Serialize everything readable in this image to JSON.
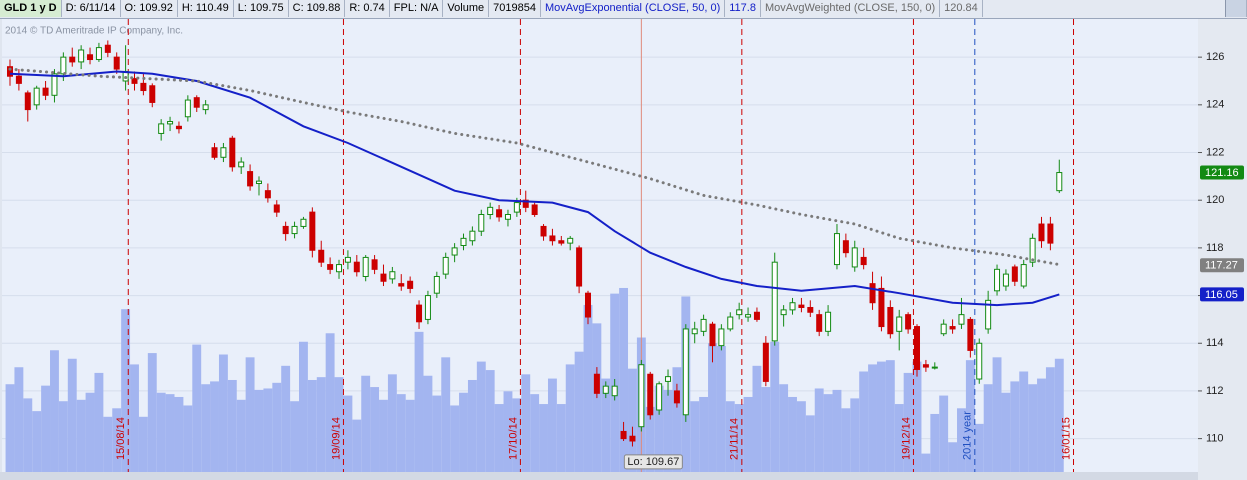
{
  "header": {
    "symbol": "GLD 1 y D",
    "fields": [
      "D: 6/11/14",
      "O: 109.92",
      "H: 110.49",
      "L: 109.75",
      "C: 109.88",
      "R: 0.74",
      "FPL: N/A"
    ],
    "volume_label": "Volume",
    "volume_value": 7019854
  },
  "chart_data": {
    "type": "candlestick",
    "copyright": "2014 © TD Ameritrade IP Company, Inc.",
    "up_color": "#138a13",
    "down_color": "#cc0000",
    "volume_color": "#a3b5f0",
    "xlim": [
      -0.9,
      133.6
    ],
    "ylim": [
      108.6,
      127.6
    ],
    "vlim": [
      0,
      32
    ],
    "yticks": [
      110,
      112,
      114,
      116,
      118,
      120,
      122,
      124,
      126
    ],
    "candles": [
      [
        125.6,
        125.9,
        124.8,
        125.2
      ],
      [
        125.2,
        125.5,
        124.6,
        124.9
      ],
      [
        124.5,
        124.6,
        123.3,
        123.8
      ],
      [
        124.0,
        124.8,
        123.8,
        124.7
      ],
      [
        124.7,
        125.0,
        124.2,
        124.4
      ],
      [
        124.4,
        125.5,
        124.1,
        125.3
      ],
      [
        125.3,
        126.2,
        125.0,
        126.0
      ],
      [
        126.0,
        126.4,
        125.6,
        125.8
      ],
      [
        125.8,
        126.5,
        125.5,
        126.3
      ],
      [
        126.1,
        126.4,
        125.7,
        125.9
      ],
      [
        125.9,
        126.6,
        125.8,
        126.4
      ],
      [
        126.5,
        126.7,
        126.0,
        126.2
      ],
      [
        126.0,
        126.2,
        125.3,
        125.5
      ],
      [
        125.0,
        126.5,
        124.6,
        125.4
      ],
      [
        125.1,
        125.4,
        124.6,
        124.9
      ],
      [
        124.9,
        125.3,
        124.4,
        124.6
      ],
      [
        124.8,
        124.9,
        123.9,
        124.1
      ],
      [
        122.8,
        123.4,
        122.5,
        123.2
      ],
      [
        123.2,
        123.5,
        122.9,
        123.3
      ],
      [
        123.1,
        123.3,
        122.8,
        123.0
      ],
      [
        123.5,
        124.4,
        123.3,
        124.2
      ],
      [
        124.3,
        124.4,
        123.7,
        123.9
      ],
      [
        123.8,
        124.2,
        123.6,
        124.0
      ],
      [
        122.2,
        122.4,
        121.7,
        121.8
      ],
      [
        121.8,
        122.4,
        121.6,
        122.2
      ],
      [
        122.6,
        122.7,
        121.2,
        121.4
      ],
      [
        121.4,
        121.8,
        121.1,
        121.6
      ],
      [
        121.2,
        121.5,
        120.4,
        120.6
      ],
      [
        120.7,
        121.0,
        120.2,
        120.8
      ],
      [
        120.4,
        120.7,
        119.9,
        120.1
      ],
      [
        119.8,
        120.0,
        119.3,
        119.5
      ],
      [
        118.9,
        119.1,
        118.3,
        118.6
      ],
      [
        118.6,
        119.1,
        118.4,
        118.9
      ],
      [
        118.9,
        119.3,
        118.8,
        119.2
      ],
      [
        119.5,
        119.7,
        117.6,
        117.9
      ],
      [
        117.9,
        118.3,
        117.2,
        117.4
      ],
      [
        117.3,
        117.6,
        116.9,
        117.1
      ],
      [
        117.0,
        117.5,
        116.7,
        117.3
      ],
      [
        117.4,
        117.9,
        117.1,
        117.6
      ],
      [
        117.4,
        117.7,
        116.8,
        117.0
      ],
      [
        116.8,
        117.7,
        116.6,
        117.6
      ],
      [
        117.5,
        117.7,
        116.9,
        117.1
      ],
      [
        116.9,
        117.3,
        116.4,
        116.6
      ],
      [
        116.7,
        117.2,
        116.5,
        117.0
      ],
      [
        116.5,
        116.9,
        116.2,
        116.4
      ],
      [
        116.6,
        116.8,
        116.1,
        116.3
      ],
      [
        115.6,
        115.8,
        114.6,
        114.9
      ],
      [
        115.0,
        116.2,
        114.8,
        116.0
      ],
      [
        116.1,
        117.0,
        115.9,
        116.8
      ],
      [
        116.9,
        117.8,
        116.7,
        117.6
      ],
      [
        117.7,
        118.2,
        117.4,
        118.0
      ],
      [
        118.1,
        118.6,
        117.9,
        118.4
      ],
      [
        118.3,
        118.9,
        118.1,
        118.7
      ],
      [
        118.7,
        119.6,
        118.5,
        119.4
      ],
      [
        119.4,
        119.9,
        119.2,
        119.7
      ],
      [
        119.6,
        119.8,
        119.1,
        119.3
      ],
      [
        119.2,
        119.6,
        118.9,
        119.4
      ],
      [
        119.5,
        120.1,
        119.3,
        119.9
      ],
      [
        120.0,
        120.4,
        119.5,
        119.7
      ],
      [
        119.8,
        119.9,
        119.3,
        119.4
      ],
      [
        118.9,
        119.0,
        118.3,
        118.5
      ],
      [
        118.5,
        118.8,
        118.1,
        118.3
      ],
      [
        118.3,
        118.5,
        118.1,
        118.2
      ],
      [
        118.2,
        118.5,
        117.9,
        118.4
      ],
      [
        118.0,
        118.1,
        116.1,
        116.4
      ],
      [
        116.1,
        116.2,
        114.8,
        115.1
      ],
      [
        112.7,
        113.0,
        111.7,
        111.9
      ],
      [
        111.9,
        112.4,
        111.7,
        112.2
      ],
      [
        111.8,
        112.5,
        111.6,
        112.2
      ],
      [
        110.3,
        110.7,
        109.9,
        110.0
      ],
      [
        110.1,
        110.5,
        109.67,
        109.9
      ],
      [
        110.5,
        113.3,
        110.3,
        113.1
      ],
      [
        112.7,
        112.8,
        110.8,
        111.0
      ],
      [
        111.2,
        112.4,
        111.0,
        112.3
      ],
      [
        112.4,
        112.9,
        111.8,
        112.6
      ],
      [
        112.0,
        112.3,
        111.3,
        111.5
      ],
      [
        111.0,
        114.8,
        110.7,
        114.6
      ],
      [
        114.4,
        114.9,
        114.0,
        114.6
      ],
      [
        114.5,
        115.2,
        114.3,
        115.0
      ],
      [
        114.8,
        114.9,
        113.2,
        113.9
      ],
      [
        113.9,
        114.8,
        113.7,
        114.6
      ],
      [
        114.6,
        115.3,
        114.5,
        115.1
      ],
      [
        115.2,
        115.7,
        115.0,
        115.4
      ],
      [
        115.1,
        115.5,
        114.9,
        115.2
      ],
      [
        115.3,
        115.5,
        114.9,
        115.0
      ],
      [
        114.0,
        114.3,
        112.2,
        112.4
      ],
      [
        114.1,
        117.8,
        113.9,
        117.4
      ],
      [
        115.2,
        115.6,
        114.7,
        115.4
      ],
      [
        115.4,
        115.9,
        115.2,
        115.7
      ],
      [
        115.6,
        115.9,
        115.3,
        115.5
      ],
      [
        115.5,
        115.8,
        115.1,
        115.3
      ],
      [
        115.2,
        115.4,
        114.3,
        114.5
      ],
      [
        114.5,
        115.6,
        114.3,
        115.3
      ],
      [
        117.3,
        119.0,
        117.1,
        118.6
      ],
      [
        118.3,
        118.6,
        117.6,
        117.8
      ],
      [
        117.2,
        118.3,
        117.0,
        118.0
      ],
      [
        117.6,
        118.0,
        117.1,
        117.3
      ],
      [
        116.5,
        117.0,
        115.4,
        115.7
      ],
      [
        116.3,
        116.8,
        114.5,
        114.7
      ],
      [
        115.5,
        115.8,
        114.2,
        114.4
      ],
      [
        114.5,
        115.4,
        113.7,
        115.1
      ],
      [
        115.2,
        115.3,
        114.4,
        114.6
      ],
      [
        114.7,
        114.8,
        112.6,
        112.9
      ],
      [
        113.1,
        113.3,
        112.8,
        113.0
      ],
      [
        113.0,
        113.2,
        112.9,
        113.0
      ],
      [
        114.4,
        115.0,
        114.3,
        114.8
      ],
      [
        114.7,
        115.0,
        114.4,
        114.6
      ],
      [
        114.8,
        115.9,
        114.6,
        115.2
      ],
      [
        115.0,
        115.1,
        113.4,
        113.7
      ],
      [
        112.5,
        114.2,
        112.3,
        114.0
      ],
      [
        114.6,
        116.2,
        114.4,
        115.8
      ],
      [
        116.2,
        117.3,
        116.0,
        117.1
      ],
      [
        116.4,
        117.1,
        116.2,
        116.9
      ],
      [
        117.2,
        117.3,
        116.4,
        116.6
      ],
      [
        116.4,
        117.5,
        116.3,
        117.3
      ],
      [
        117.4,
        118.6,
        117.2,
        118.4
      ],
      [
        119.0,
        119.3,
        118.0,
        118.3
      ],
      [
        119.0,
        119.3,
        117.9,
        118.2
      ],
      [
        120.4,
        121.7,
        120.3,
        121.16
      ]
    ],
    "volume": [
      6.2,
      7.4,
      5.2,
      4.3,
      6.1,
      8.6,
      5.0,
      8.0,
      5.1,
      5.6,
      7.0,
      3.9,
      4.5,
      11.5,
      7.6,
      3.9,
      8.4,
      5.6,
      5.5,
      5.3,
      4.7,
      9.0,
      6.2,
      6.4,
      8.3,
      6.5,
      5.1,
      8.1,
      5.8,
      5.9,
      6.3,
      7.5,
      5.0,
      9.2,
      6.5,
      6.7,
      9.8,
      6.7,
      5.4,
      3.7,
      6.8,
      6.0,
      5.1,
      6.9,
      5.5,
      5.1,
      9.9,
      6.8,
      5.4,
      8.1,
      4.7,
      5.6,
      6.5,
      7.8,
      7.2,
      4.8,
      5.7,
      5.2,
      6.9,
      5.5,
      4.8,
      6.6,
      4.8,
      7.6,
      8.5,
      11.8,
      10.5,
      6.6,
      12.6,
      13.0,
      7.3,
      9.5,
      4.6,
      6.1,
      5.8,
      7.4,
      12.4,
      5.0,
      5.3,
      9.1,
      8.9,
      5.0,
      4.8,
      5.3,
      7.5,
      6.0,
      9.2,
      6.2,
      5.3,
      5.0,
      4.0,
      5.9,
      5.5,
      5.8,
      4.5,
      5.2,
      7.1,
      7.6,
      7.8,
      7.9,
      4.8,
      7.0,
      7.8,
      1.3,
      4.1,
      5.4,
      2.1,
      4.5,
      7.9,
      3.4,
      6.2,
      8.1,
      5.6,
      6.4,
      7.1,
      6.2,
      6.6,
      7.4,
      8.0
    ],
    "series": [
      {
        "name": "MovAvgExponential (CLOSE, 50, 0)",
        "header_value": 117.8,
        "color": "#1420c8",
        "style": "solid",
        "x": [
          0,
          6,
          12,
          16,
          21,
          27,
          33,
          38,
          44,
          50,
          55,
          61,
          65,
          68,
          72,
          76,
          80,
          84,
          89,
          95,
          100,
          106,
          111,
          115,
          118
        ],
        "values": [
          125.3,
          125.2,
          125.4,
          125.3,
          125.0,
          124.3,
          123.1,
          122.4,
          121.4,
          120.4,
          120.0,
          119.9,
          119.5,
          118.7,
          117.8,
          117.2,
          116.7,
          116.4,
          116.2,
          116.4,
          116.1,
          115.7,
          115.6,
          115.7,
          116.05
        ]
      },
      {
        "name": "MovAvgWeighted (CLOSE, 150, 0)",
        "header_value": 120.84,
        "color": "#7a7a7a",
        "style": "dotted",
        "x": [
          0,
          10,
          21,
          27,
          33,
          38,
          44,
          50,
          57,
          66,
          72,
          78,
          84,
          89,
          95,
          100,
          106,
          112,
          118
        ],
        "values": [
          125.5,
          125.2,
          125.0,
          124.6,
          124.1,
          123.7,
          123.3,
          122.8,
          122.4,
          121.5,
          120.9,
          120.2,
          119.8,
          119.4,
          119.0,
          118.4,
          118.0,
          117.7,
          117.3
        ]
      }
    ],
    "badges": [
      {
        "value": 121.16,
        "color": "#138a13"
      },
      {
        "value": 117.27,
        "color": "#808080"
      },
      {
        "value": 116.05,
        "color": "#1420c8"
      }
    ],
    "markers": [
      {
        "label": "15/08/14",
        "x": 13.3,
        "color": "#cc0000"
      },
      {
        "label": "19/09/14",
        "x": 37.5,
        "color": "#cc0000"
      },
      {
        "label": "17/10/14",
        "x": 57.4,
        "color": "#cc0000"
      },
      {
        "label": "21/11/14",
        "x": 82.3,
        "color": "#cc0000"
      },
      {
        "label": "19/12/14",
        "x": 101.6,
        "color": "#cc0000"
      },
      {
        "label": "2014 year",
        "x": 108.5,
        "color": "#1f4fc0"
      },
      {
        "label": "16/01/15",
        "x": 119.6,
        "color": "#cc0000"
      }
    ],
    "annotation": {
      "text": "Lo: 109.67",
      "x": 70
    }
  }
}
